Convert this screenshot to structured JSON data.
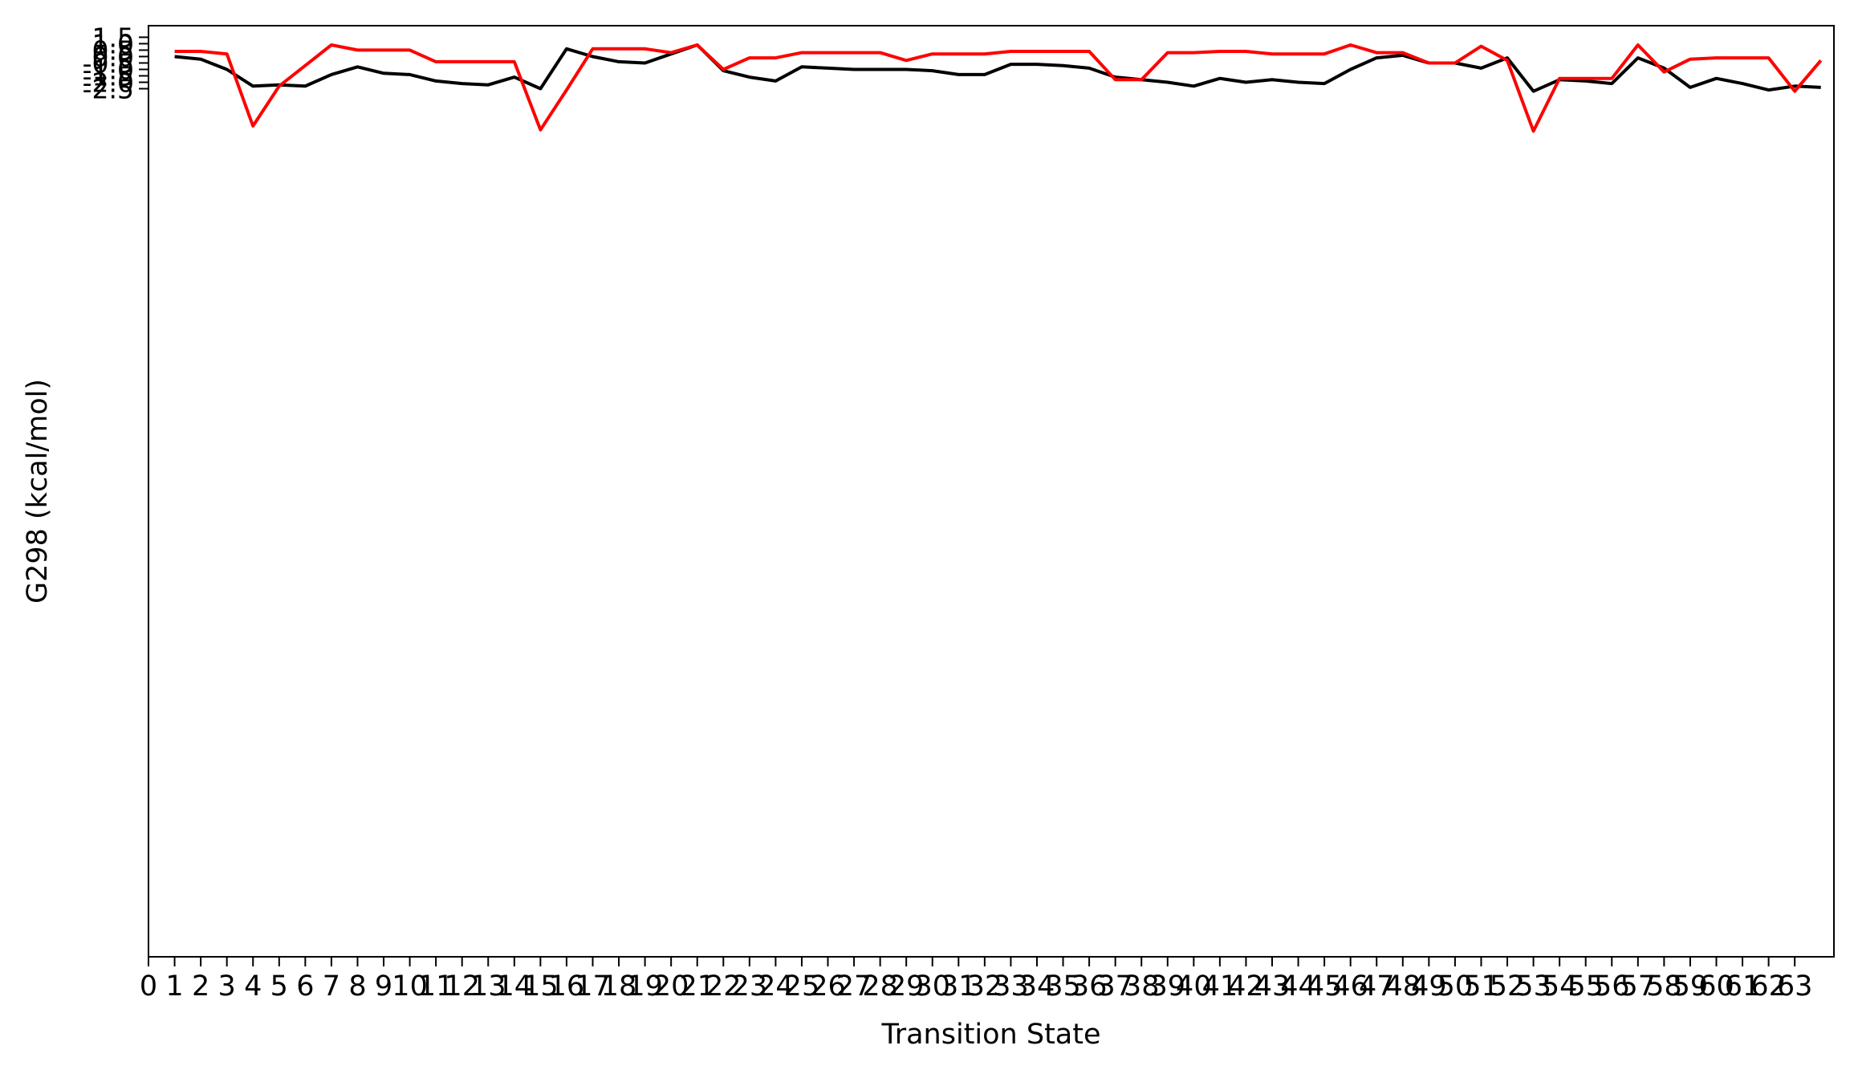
{
  "chart_data": {
    "type": "line",
    "xlabel": "Transition State",
    "ylabel": "G298 (kcal/mol)",
    "xlim": [
      0,
      64.5
    ],
    "ylim": [
      -70,
      2.4
    ],
    "grid": false,
    "x_ticks": [
      "0",
      "1",
      "2",
      "3",
      "4",
      "5",
      "6",
      "7",
      "8",
      "9",
      "10",
      "11",
      "12",
      "13",
      "14",
      "15",
      "16",
      "17",
      "18",
      "19",
      "20",
      "21",
      "22",
      "23",
      "24",
      "25",
      "26",
      "27",
      "28",
      "29",
      "30",
      "31",
      "32",
      "33",
      "34",
      "35",
      "36",
      "37",
      "38",
      "39",
      "40",
      "41",
      "42",
      "43",
      "44",
      "45",
      "46",
      "47",
      "48",
      "49",
      "50",
      "51",
      "52",
      "53",
      "54",
      "55",
      "56",
      "57",
      "58",
      "59",
      "60",
      "61",
      "62",
      "63"
    ],
    "y_ticks_overlapping": [
      "-2.5",
      "-2.0",
      "-1.5",
      "-1.0",
      "-0.5",
      "0.0",
      "0.5",
      "1.0",
      "1.5"
    ],
    "series": [
      {
        "color": "#000000",
        "x": [
          1,
          2,
          3,
          4,
          5,
          6,
          7,
          8,
          9,
          10,
          11,
          12,
          13,
          14,
          15,
          16,
          17,
          18,
          19,
          20,
          21,
          22,
          23,
          24,
          25,
          26,
          27,
          28,
          29,
          30,
          31,
          32,
          33,
          34,
          35,
          36,
          37,
          38,
          39,
          40,
          41,
          42,
          43,
          44,
          45,
          46,
          47,
          48,
          49,
          50,
          51,
          52,
          53,
          54,
          55,
          56,
          57,
          58,
          59,
          60,
          61,
          62,
          63,
          64
        ],
        "values": [
          0.0,
          -0.2,
          -1.0,
          -2.3,
          -2.2,
          -2.3,
          -1.4,
          -0.8,
          -1.3,
          -1.4,
          -1.9,
          -2.1,
          -2.2,
          -1.6,
          -2.5,
          0.6,
          0.0,
          -0.4,
          -0.5,
          0.2,
          0.9,
          -1.1,
          -1.6,
          -1.9,
          -0.8,
          -0.9,
          -1.0,
          -1.0,
          -1.0,
          -1.1,
          -1.4,
          -1.4,
          -0.6,
          -0.6,
          -0.7,
          -0.9,
          -1.6,
          -1.8,
          -2.0,
          -2.3,
          -1.7,
          -2.0,
          -1.8,
          -2.0,
          -2.1,
          -1.0,
          -0.1,
          0.1,
          -0.5,
          -0.5,
          -0.9,
          -0.1,
          -2.7,
          -1.8,
          -1.9,
          -2.1,
          -0.1,
          -0.9,
          -2.4,
          -1.7,
          -2.1,
          -2.6,
          -2.3,
          -2.4
        ]
      },
      {
        "color": "#ff0000",
        "x": [
          1,
          2,
          3,
          4,
          5,
          6,
          7,
          8,
          9,
          10,
          11,
          12,
          13,
          14,
          15,
          16,
          17,
          18,
          19,
          20,
          21,
          22,
          23,
          24,
          25,
          26,
          27,
          28,
          29,
          30,
          31,
          32,
          33,
          34,
          35,
          36,
          37,
          38,
          39,
          40,
          41,
          42,
          43,
          44,
          45,
          46,
          47,
          48,
          49,
          50,
          51,
          52,
          53,
          54,
          55,
          56,
          57,
          58,
          59,
          60,
          61,
          62,
          63,
          64
        ],
        "values": [
          0.4,
          0.4,
          0.2,
          -5.4,
          -2.3,
          -0.7,
          0.9,
          0.5,
          0.5,
          0.5,
          -0.4,
          -0.4,
          -0.4,
          -0.4,
          -5.7,
          -2.6,
          0.6,
          0.6,
          0.6,
          0.3,
          0.9,
          -1.0,
          -0.1,
          -0.1,
          0.3,
          0.3,
          0.3,
          0.3,
          -0.3,
          0.2,
          0.2,
          0.2,
          0.4,
          0.4,
          0.4,
          0.4,
          -1.8,
          -1.8,
          0.3,
          0.3,
          0.4,
          0.4,
          0.2,
          0.2,
          0.2,
          0.9,
          0.3,
          0.3,
          -0.5,
          -0.5,
          0.8,
          -0.3,
          -5.8,
          -1.7,
          -1.7,
          -1.7,
          0.9,
          -1.2,
          -0.2,
          -0.1,
          -0.1,
          -0.1,
          -2.7,
          -0.3
        ]
      }
    ]
  }
}
